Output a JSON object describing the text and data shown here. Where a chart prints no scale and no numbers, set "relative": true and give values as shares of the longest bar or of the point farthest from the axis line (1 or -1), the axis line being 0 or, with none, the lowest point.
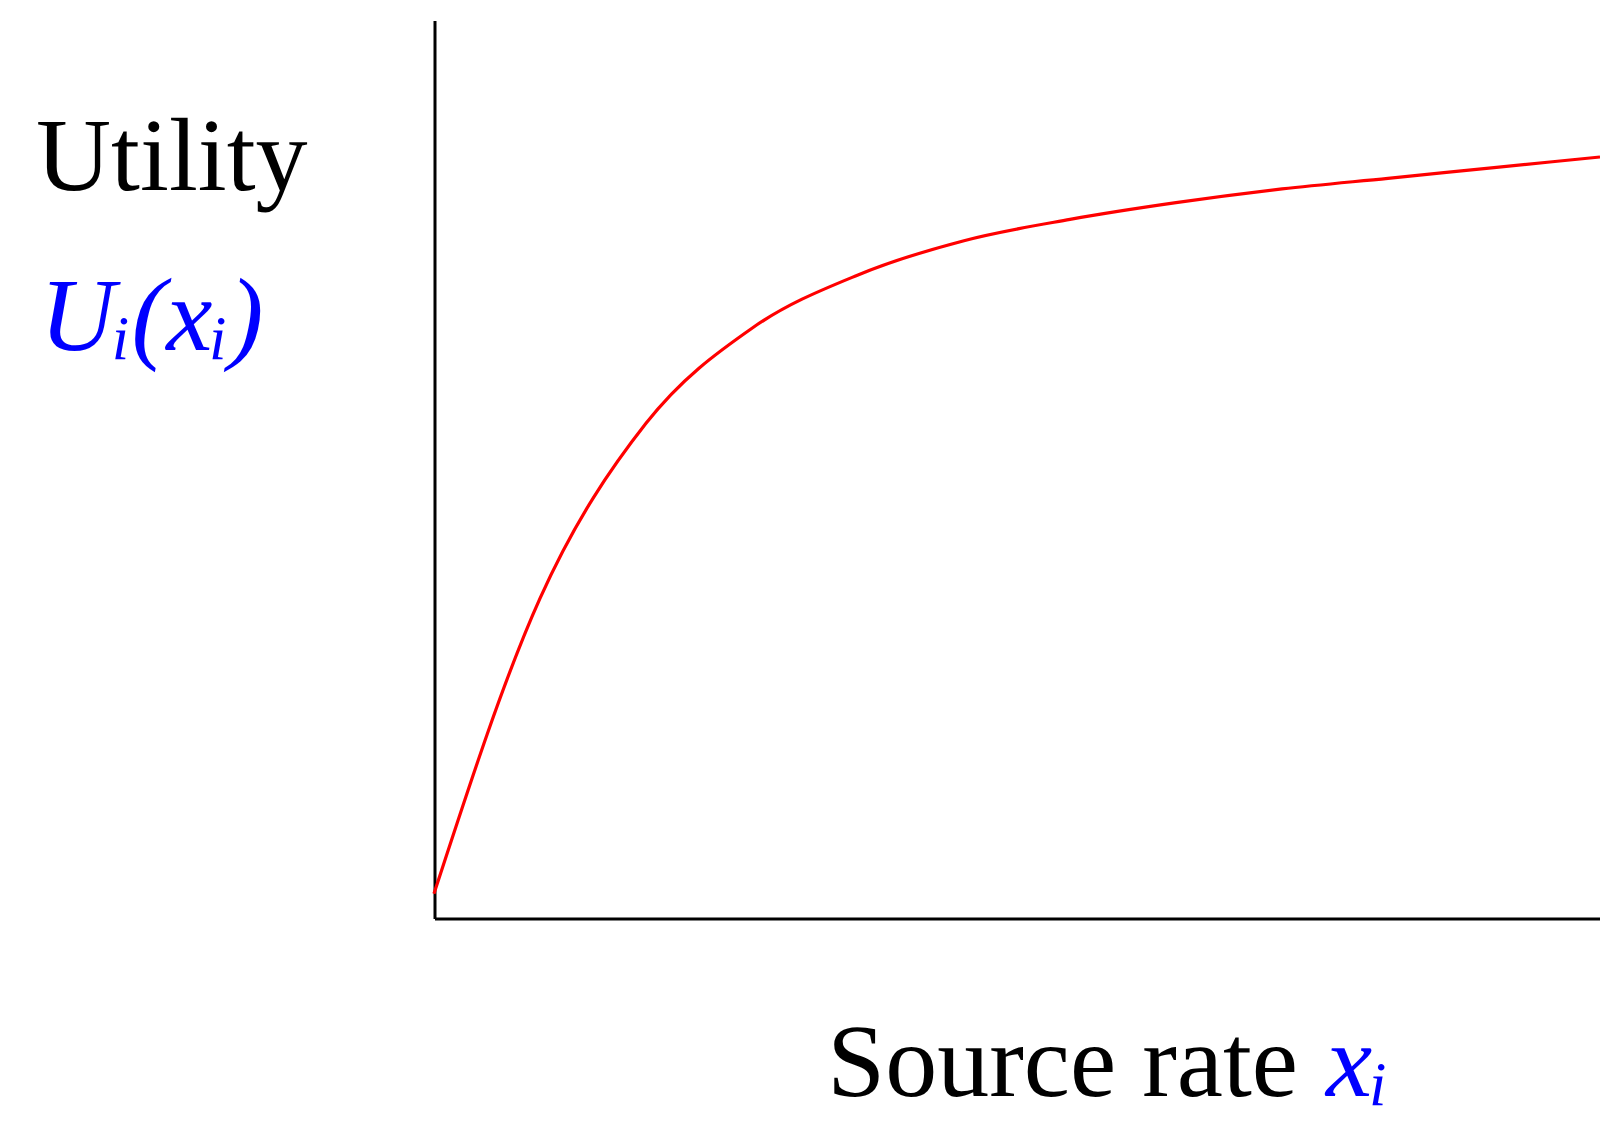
{
  "chart_data": {
    "type": "line",
    "relative": true,
    "xlabel": "Source rate xᵢ",
    "ylabel": "Utility Uᵢ(xᵢ)",
    "tick_labels": false,
    "categories": [
      null,
      null,
      null,
      null,
      null,
      null,
      null,
      null,
      null,
      null,
      null,
      null
    ],
    "series": [
      {
        "color": "#ff0000",
        "values": [
          0.032,
          0.42,
          0.65,
          0.775,
          0.845,
          0.89,
          0.918,
          0.94,
          0.958,
          0.972,
          0.986,
          1
        ]
      }
    ]
  }
}
